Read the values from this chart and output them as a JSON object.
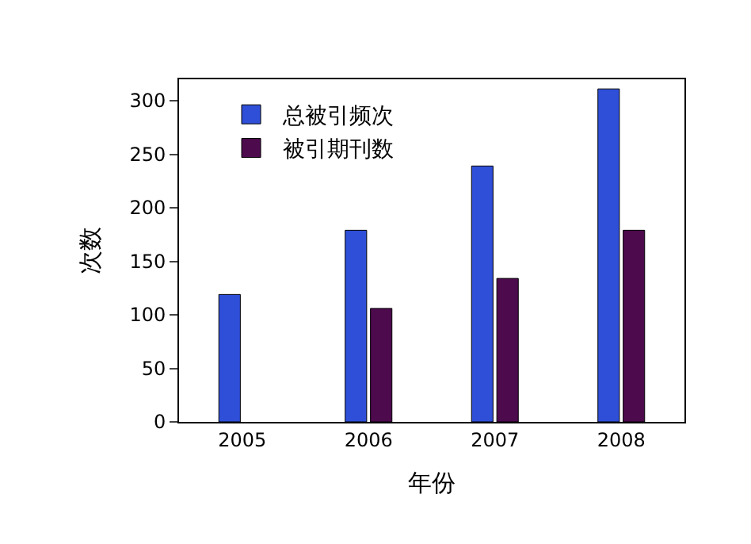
{
  "chart_data": {
    "type": "bar",
    "xlabel": "年份",
    "ylabel": "次数",
    "categories": [
      "2005",
      "2006",
      "2007",
      "2008"
    ],
    "series": [
      {
        "name": "总被引频次",
        "color": "#2f4fd8",
        "values": [
          119,
          179,
          239,
          311
        ]
      },
      {
        "name": "被引期刊数",
        "color": "#4d0a4d",
        "values": [
          null,
          106,
          134,
          179
        ]
      }
    ],
    "ylim": [
      0,
      320
    ],
    "yticks": [
      0,
      50,
      100,
      150,
      200,
      250,
      300
    ],
    "legend": "top left"
  }
}
